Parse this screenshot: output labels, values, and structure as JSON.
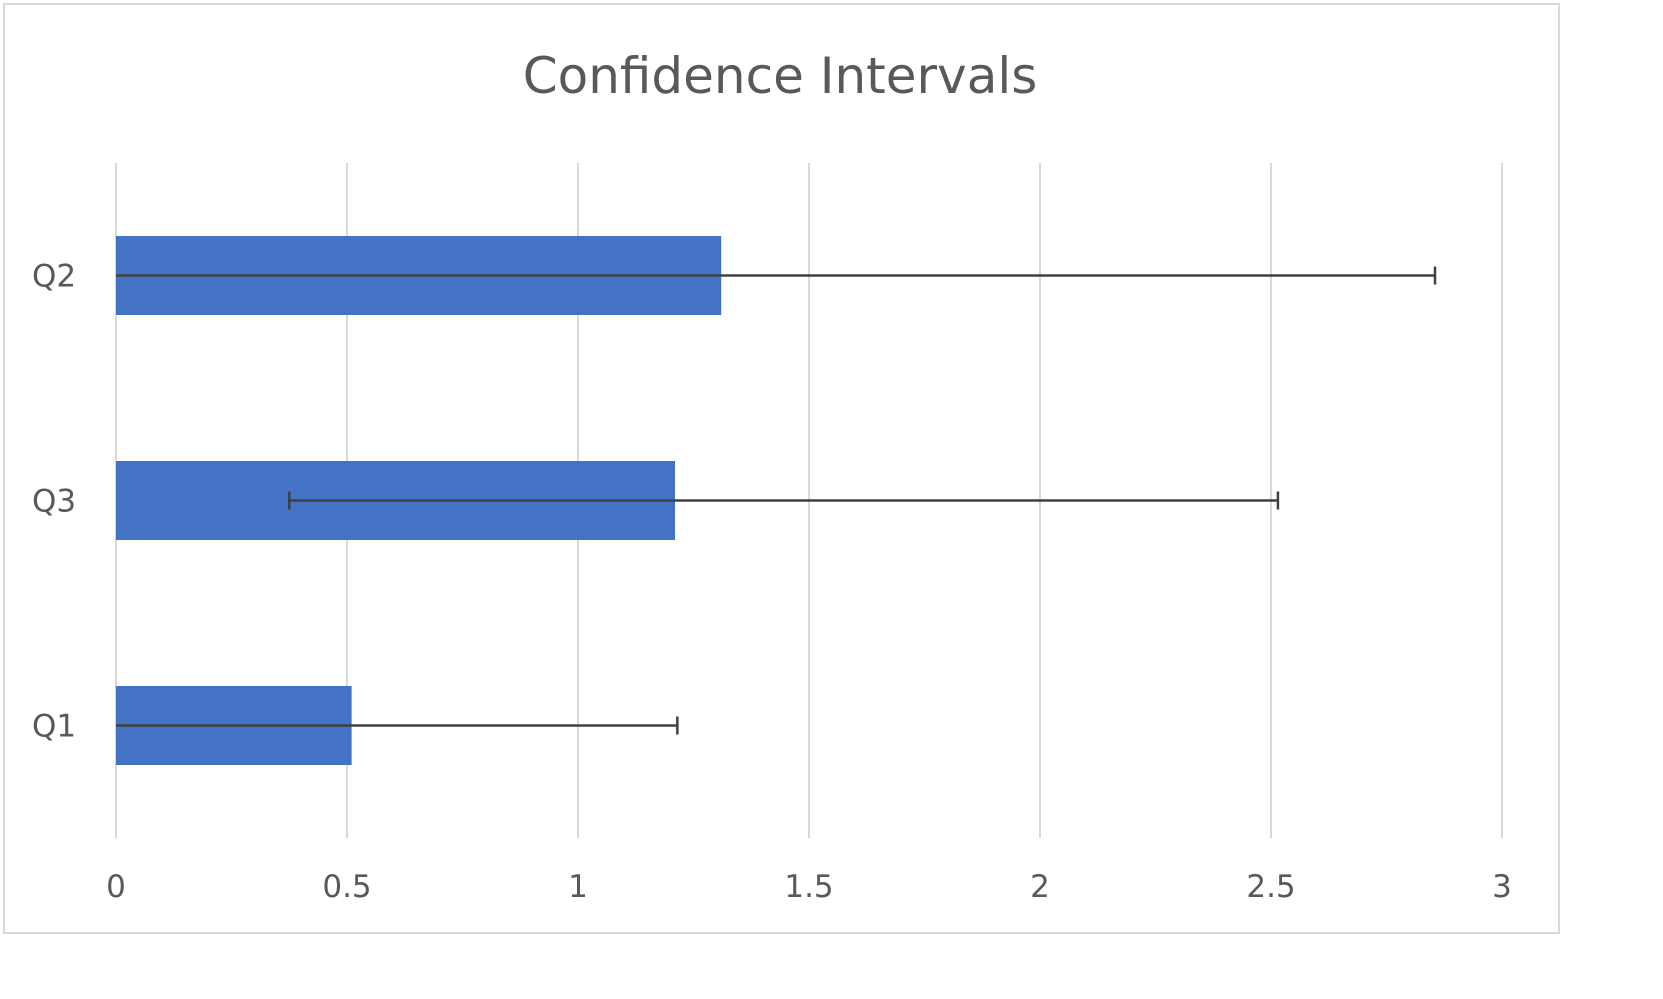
{
  "chart_data": {
    "type": "bar",
    "orientation": "horizontal",
    "title": "Confidence Intervals",
    "categories": [
      "Q1",
      "Q3",
      "Q2"
    ],
    "values": [
      0.51,
      1.21,
      1.31
    ],
    "error_bars": [
      {
        "low": 0.0,
        "high": 1.215
      },
      {
        "low": 0.375,
        "high": 2.515
      },
      {
        "low": 0.0,
        "high": 2.855
      }
    ],
    "x_ticks": [
      "0",
      "0.5",
      "1",
      "1.5",
      "2",
      "2.5",
      "3"
    ],
    "xlim": [
      0,
      3
    ],
    "xlabel": "",
    "ylabel": "",
    "grid": "vertical",
    "legend": "none",
    "colors": {
      "bar": "#4472c4",
      "error_bar": "#404040",
      "grid": "#d9d9d9",
      "text": "#595959"
    }
  }
}
